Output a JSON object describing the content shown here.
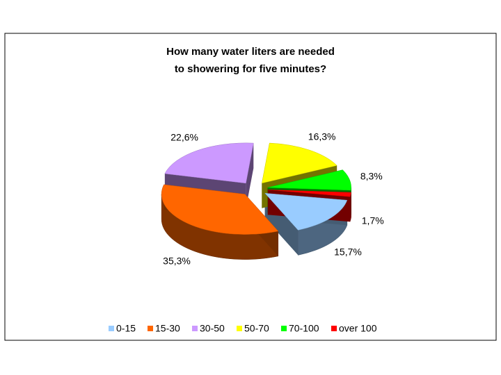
{
  "chart_data": {
    "type": "pie3d",
    "title": [
      "How many water liters are needed",
      "to showering for five minutes?"
    ],
    "categories": [
      "0-15",
      "15-30",
      "30-50",
      "50-70",
      "70-100",
      "over 100"
    ],
    "values": [
      15.7,
      35.3,
      22.6,
      16.3,
      8.3,
      1.7
    ],
    "value_labels": [
      "15,7%",
      "35,3%",
      "22,6%",
      "16,3%",
      "8,3%",
      "1,7%"
    ],
    "colors": [
      "#99ccff",
      "#ff6600",
      "#cc99ff",
      "#ffff00",
      "#00ff00",
      "#ff0000"
    ],
    "legend": "bottom"
  }
}
